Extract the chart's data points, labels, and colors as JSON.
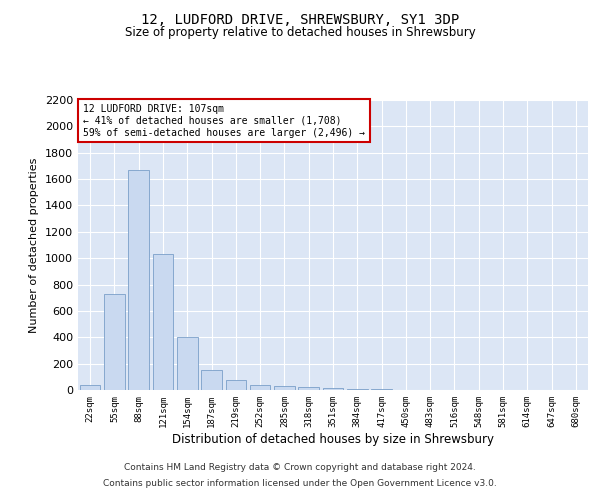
{
  "title1": "12, LUDFORD DRIVE, SHREWSBURY, SY1 3DP",
  "title2": "Size of property relative to detached houses in Shrewsbury",
  "xlabel": "Distribution of detached houses by size in Shrewsbury",
  "ylabel": "Number of detached properties",
  "bar_labels": [
    "22sqm",
    "55sqm",
    "88sqm",
    "121sqm",
    "154sqm",
    "187sqm",
    "219sqm",
    "252sqm",
    "285sqm",
    "318sqm",
    "351sqm",
    "384sqm",
    "417sqm",
    "450sqm",
    "483sqm",
    "516sqm",
    "548sqm",
    "581sqm",
    "614sqm",
    "647sqm",
    "680sqm"
  ],
  "bar_values": [
    40,
    730,
    1670,
    1030,
    400,
    150,
    75,
    40,
    30,
    20,
    15,
    10,
    8,
    0,
    0,
    0,
    0,
    0,
    0,
    0,
    0
  ],
  "bar_color": "#c9d9f0",
  "bar_edge_color": "#7a9fc9",
  "background_color": "#dce6f5",
  "annotation_title": "12 LUDFORD DRIVE: 107sqm",
  "annotation_line1": "← 41% of detached houses are smaller (1,708)",
  "annotation_line2": "59% of semi-detached houses are larger (2,496) →",
  "annotation_box_color": "#ffffff",
  "annotation_box_edge": "#cc0000",
  "ylim": [
    0,
    2200
  ],
  "yticks": [
    0,
    200,
    400,
    600,
    800,
    1000,
    1200,
    1400,
    1600,
    1800,
    2000,
    2200
  ],
  "footnote1": "Contains HM Land Registry data © Crown copyright and database right 2024.",
  "footnote2": "Contains public sector information licensed under the Open Government Licence v3.0."
}
